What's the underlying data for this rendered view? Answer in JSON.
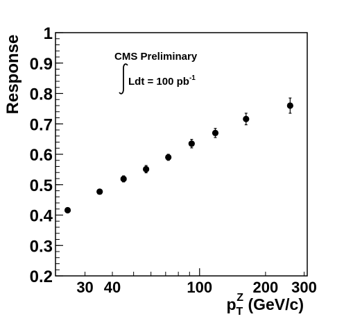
{
  "chart_data": {
    "type": "scatter",
    "xlabel": {
      "main": "p",
      "sub": "T",
      "sup": "Z",
      "unit": " (GeV/c)"
    },
    "ylabel": "Response",
    "xscale": "log",
    "xlim": [
      22,
      310
    ],
    "ylim": [
      0.2,
      1.0
    ],
    "x_ticks": [
      {
        "value": 30,
        "label": "30"
      },
      {
        "value": 40,
        "label": "40"
      },
      {
        "value": 100,
        "label": "100"
      },
      {
        "value": 200,
        "label": "200"
      },
      {
        "value": 300,
        "label": "300"
      }
    ],
    "y_ticks": [
      {
        "value": 0.2,
        "label": "0.2"
      },
      {
        "value": 0.3,
        "label": "0.3"
      },
      {
        "value": 0.4,
        "label": "0.4"
      },
      {
        "value": 0.5,
        "label": "0.5"
      },
      {
        "value": 0.6,
        "label": "0.6"
      },
      {
        "value": 0.7,
        "label": "0.7"
      },
      {
        "value": 0.8,
        "label": "0.8"
      },
      {
        "value": 0.9,
        "label": "0.9"
      },
      {
        "value": 1.0,
        "label": "1"
      }
    ],
    "grid": false,
    "marker_color": "#000000",
    "points": [
      {
        "x": 25,
        "y": 0.416,
        "err": 0.008
      },
      {
        "x": 35,
        "y": 0.477,
        "err": 0.008
      },
      {
        "x": 45,
        "y": 0.519,
        "err": 0.01
      },
      {
        "x": 57,
        "y": 0.551,
        "err": 0.012
      },
      {
        "x": 72,
        "y": 0.59,
        "err": 0.01
      },
      {
        "x": 92,
        "y": 0.635,
        "err": 0.014
      },
      {
        "x": 118,
        "y": 0.67,
        "err": 0.015
      },
      {
        "x": 163,
        "y": 0.716,
        "err": 0.019
      },
      {
        "x": 259,
        "y": 0.76,
        "err": 0.025
      }
    ],
    "annotations": {
      "experiment": "CMS Preliminary",
      "lumi": "Ldt = 100 pb",
      "lumi_sup": "-1"
    }
  }
}
